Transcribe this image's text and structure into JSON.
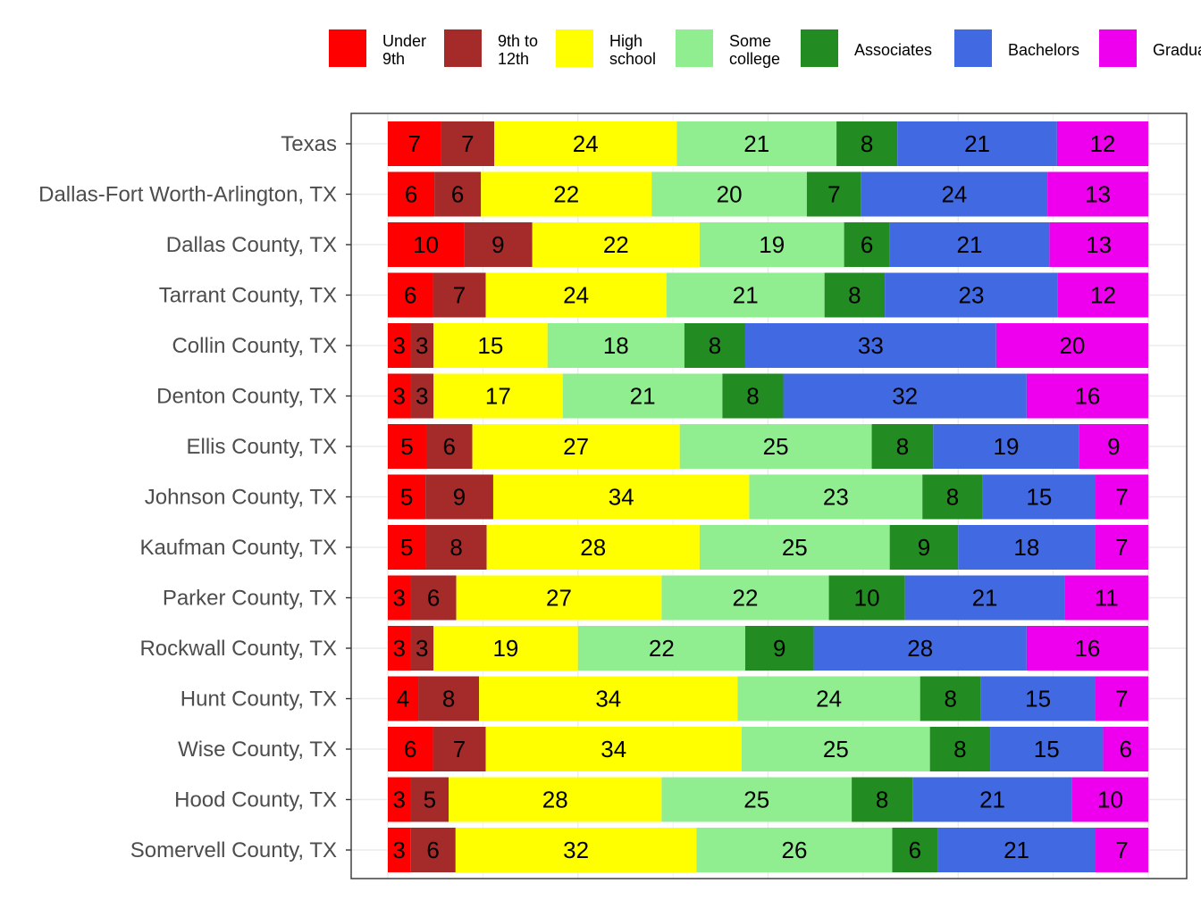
{
  "chart_data": {
    "type": "bar",
    "orientation": "horizontal",
    "stacked": true,
    "grid": true,
    "legend_position": "top",
    "categories": [
      "Texas",
      "Dallas-Fort Worth-Arlington, TX",
      "Dallas County, TX",
      "Tarrant County, TX",
      "Collin County, TX",
      "Denton County, TX",
      "Ellis County, TX",
      "Johnson County, TX",
      "Kaufman County, TX",
      "Parker County, TX",
      "Rockwall County, TX",
      "Hunt County, TX",
      "Wise County, TX",
      "Hood County, TX",
      "Somervell County, TX"
    ],
    "series": [
      {
        "name": "Under 9th",
        "legend_lines": [
          "Under",
          "9th"
        ],
        "color": "#ff0000",
        "values": [
          7,
          6,
          10,
          6,
          3,
          3,
          5,
          5,
          5,
          3,
          3,
          4,
          6,
          3,
          3
        ]
      },
      {
        "name": "9th to 12th",
        "legend_lines": [
          "9th to",
          "12th"
        ],
        "color": "#a52a2a",
        "values": [
          7,
          6,
          9,
          7,
          3,
          3,
          6,
          9,
          8,
          6,
          3,
          8,
          7,
          5,
          6
        ]
      },
      {
        "name": "High school",
        "legend_lines": [
          "High",
          "school"
        ],
        "color": "#ffff00",
        "values": [
          24,
          22,
          22,
          24,
          15,
          17,
          27,
          34,
          28,
          27,
          19,
          34,
          34,
          28,
          32
        ]
      },
      {
        "name": "Some college",
        "legend_lines": [
          "Some",
          "college"
        ],
        "color": "#90ee90",
        "values": [
          21,
          20,
          19,
          21,
          18,
          21,
          25,
          23,
          25,
          22,
          22,
          24,
          25,
          25,
          26
        ]
      },
      {
        "name": "Associates",
        "legend_lines": [
          "Associates"
        ],
        "color": "#228b22",
        "values": [
          8,
          7,
          6,
          8,
          8,
          8,
          8,
          8,
          9,
          10,
          9,
          8,
          8,
          8,
          6
        ]
      },
      {
        "name": "Bachelors",
        "legend_lines": [
          "Bachelors"
        ],
        "color": "#4169e1",
        "values": [
          21,
          24,
          21,
          23,
          33,
          32,
          19,
          15,
          18,
          21,
          28,
          15,
          15,
          21,
          21
        ]
      },
      {
        "name": "Graduate",
        "legend_lines": [
          "Graduate"
        ],
        "color": "#ee00ee",
        "values": [
          12,
          13,
          13,
          12,
          20,
          16,
          9,
          7,
          7,
          11,
          16,
          7,
          6,
          10,
          7
        ]
      }
    ]
  }
}
